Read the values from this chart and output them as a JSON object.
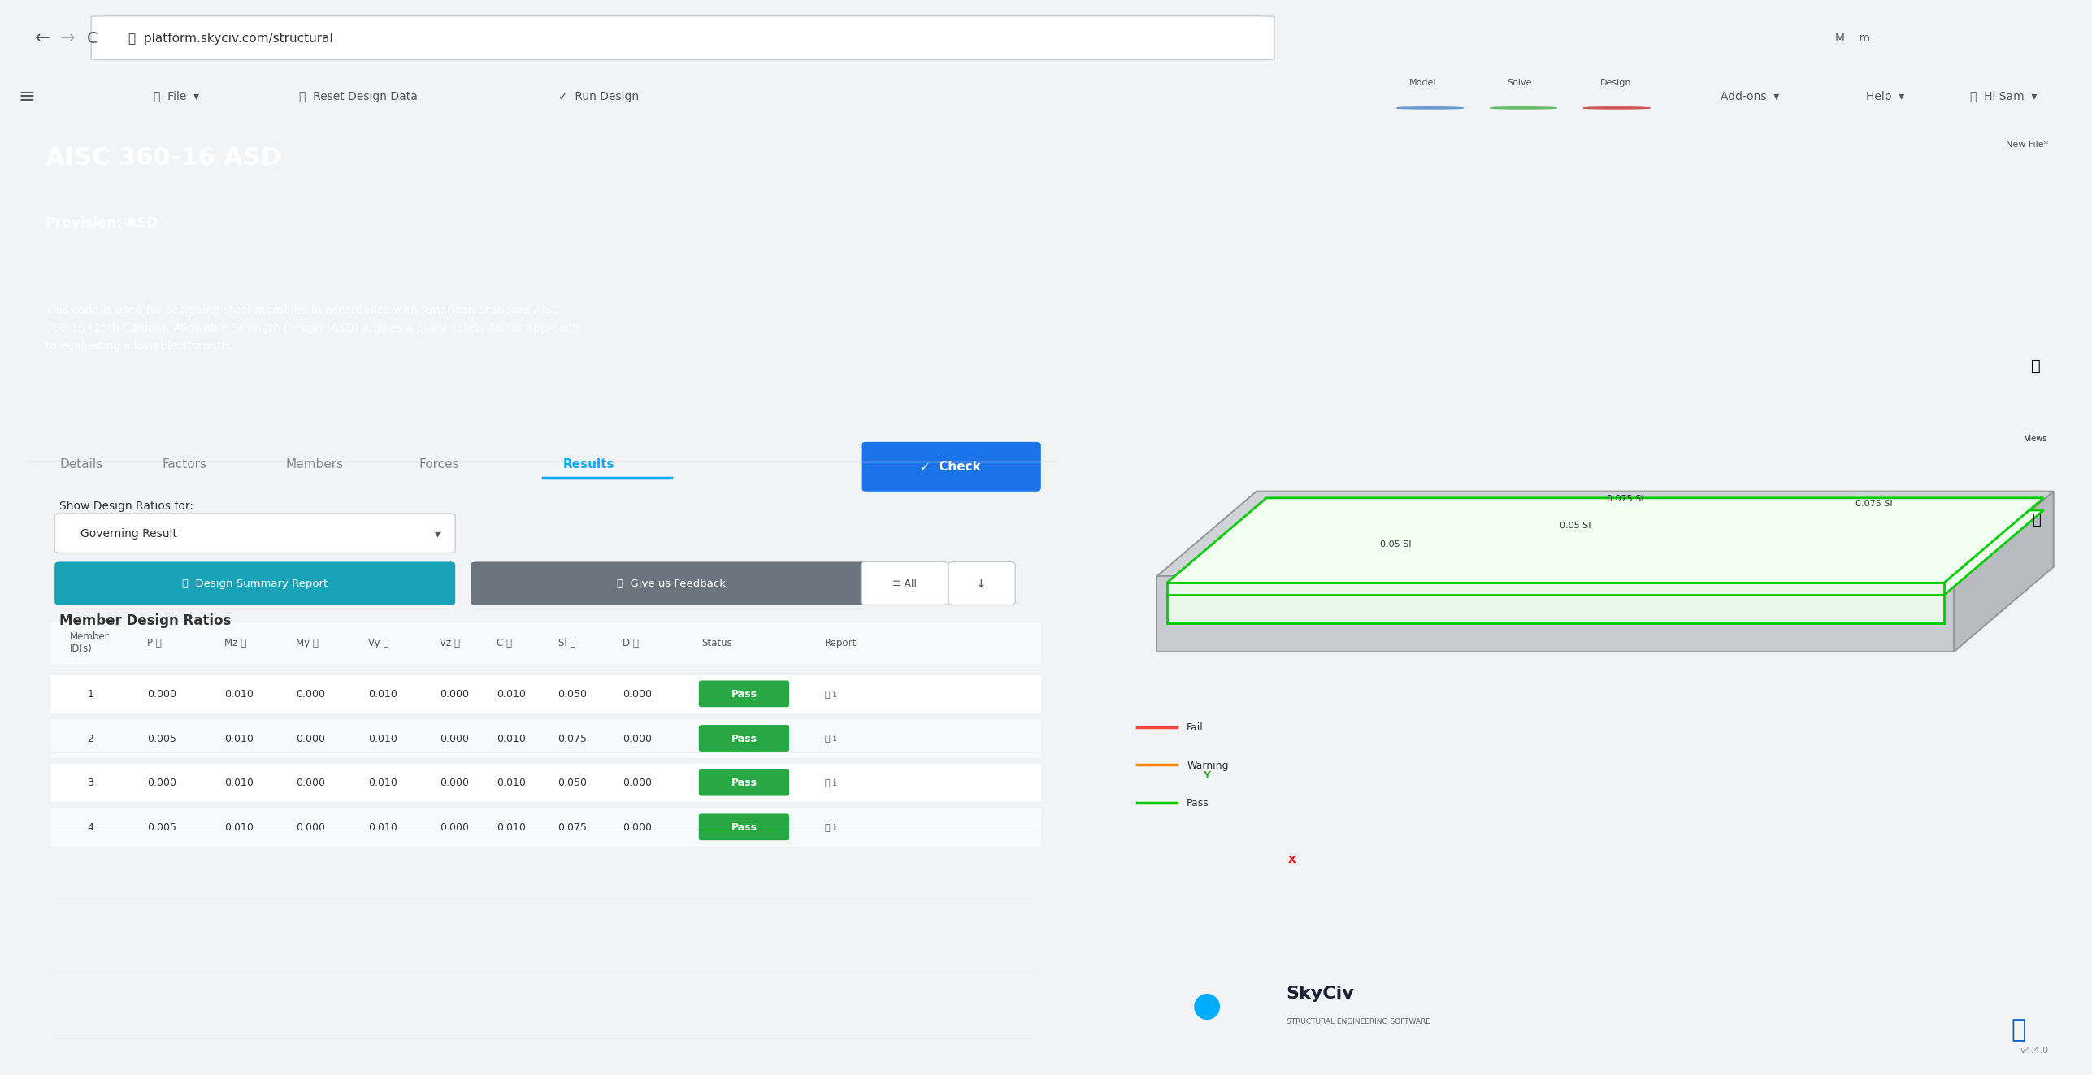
{
  "browser_bar_color": "#f1f3f4",
  "browser_url": "platform.skyciv.com/structural",
  "nav_bg": "#ffffff",
  "panel_bg": "#1a2235",
  "panel_title": "AISC 360-16 ASD",
  "panel_provision": "Provision: ASD",
  "panel_description": "This code is used for designing steel members in accordance with American Standard AISC\n360-16 (15th Edition). Allowable Strength Design (ASD) applies a quasi-safety factor approach\nto evaluating allowable strength.",
  "tab_items": [
    "Details",
    "Factors",
    "Members",
    "Forces",
    "Results"
  ],
  "active_tab": "Results",
  "active_tab_color": "#00aaff",
  "check_btn_color": "#1a73e8",
  "show_label": "Show Design Ratios for:",
  "dropdown_text": "Governing Result",
  "btn1_color": "#17a2b8",
  "btn2_color": "#6c757d",
  "table_title": "Member Design Ratios",
  "table_data": [
    [
      1,
      "0.000",
      "0.010",
      "0.000",
      "0.010",
      "0.000",
      "0.010",
      "0.050",
      "0.000",
      "Pass"
    ],
    [
      2,
      "0.005",
      "0.010",
      "0.000",
      "0.010",
      "0.000",
      "0.010",
      "0.075",
      "0.000",
      "Pass"
    ],
    [
      3,
      "0.000",
      "0.010",
      "0.000",
      "0.010",
      "0.000",
      "0.010",
      "0.050",
      "0.000",
      "Pass"
    ],
    [
      4,
      "0.005",
      "0.010",
      "0.000",
      "0.010",
      "0.000",
      "0.010",
      "0.075",
      "0.000",
      "Pass"
    ]
  ],
  "pass_color": "#28a745",
  "right_panel_bg": "#e8eaed",
  "beam_color": "#00cc00",
  "legend_fail_color": "#ff4444",
  "legend_warn_color": "#ff8800",
  "legend_pass_color": "#00cc00",
  "footer_text": "v4.4.0",
  "footer_text2": "New File*"
}
